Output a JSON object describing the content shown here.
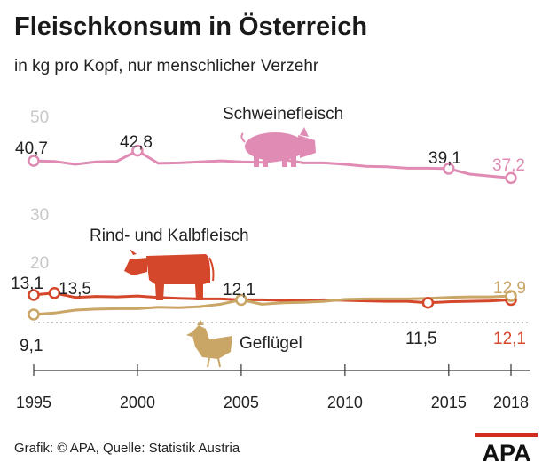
{
  "header": {
    "title": "Fleischkonsum in Österreich",
    "subtitle": "in kg pro Kopf, nur menschlicher Verzehr"
  },
  "footer": {
    "source": "Grafik: © APA, Quelle: Statistik Austria",
    "logo_text": "APA"
  },
  "colors": {
    "pork": "#e08bb3",
    "beef": "#d4472a",
    "poultry": "#c9a566",
    "grid": "#8a8a8a",
    "tick": "#c8c8c8",
    "text": "#222222"
  },
  "chart_data": {
    "type": "line",
    "title": "Fleischkonsum in Österreich",
    "subtitle": "in kg pro Kopf, nur menschlicher Verzehr",
    "xlabel": "",
    "ylabel": "kg pro Kopf",
    "x": [
      1995,
      1996,
      1997,
      1998,
      1999,
      2000,
      2001,
      2002,
      2003,
      2004,
      2005,
      2006,
      2007,
      2008,
      2009,
      2010,
      2011,
      2012,
      2013,
      2014,
      2015,
      2016,
      2017,
      2018
    ],
    "x_ticks": [
      "1995",
      "2000",
      "2005",
      "2010",
      "2015",
      "2018"
    ],
    "y_ticks": [
      "50",
      "30",
      "20"
    ],
    "axis_break": "between 20 and 30",
    "ylim": [
      0,
      50
    ],
    "series": [
      {
        "name": "Schweinefleisch",
        "color": "#e08bb3",
        "values": [
          40.7,
          40.6,
          40.0,
          40.5,
          40.6,
          42.8,
          40.2,
          40.3,
          40.5,
          40.7,
          40.5,
          40.4,
          41.0,
          40.3,
          40.3,
          40.0,
          39.6,
          39.5,
          39.2,
          39.2,
          39.1,
          38.0,
          37.6,
          37.2
        ],
        "point_labels": [
          {
            "year": 1995,
            "text": "40,7"
          },
          {
            "year": 2000,
            "text": "42,8"
          },
          {
            "year": 2015,
            "text": "39,1"
          },
          {
            "year": 2018,
            "text": "37,2"
          }
        ]
      },
      {
        "name": "Rind- und Kalbfleisch",
        "color": "#d4472a",
        "values": [
          13.1,
          13.5,
          12.6,
          12.8,
          12.7,
          12.9,
          12.6,
          12.4,
          12.3,
          12.3,
          12.1,
          12.1,
          12.0,
          12.0,
          12.1,
          12.0,
          11.9,
          11.8,
          11.8,
          11.5,
          11.7,
          11.8,
          11.9,
          12.1
        ],
        "point_labels": [
          {
            "year": 1995,
            "text": "13,1"
          },
          {
            "year": 1996,
            "text": "13,5"
          },
          {
            "year": 2014,
            "text": "11,5"
          },
          {
            "year": 2018,
            "text": "12,1"
          }
        ]
      },
      {
        "name": "Geflügel",
        "color": "#c9a566",
        "values": [
          9.1,
          9.4,
          10.0,
          10.2,
          10.3,
          10.3,
          10.6,
          10.5,
          10.7,
          11.2,
          12.1,
          11.2,
          11.5,
          11.6,
          11.8,
          12.2,
          12.3,
          12.3,
          12.3,
          12.4,
          12.6,
          12.7,
          12.7,
          12.9
        ],
        "point_labels": [
          {
            "year": 1995,
            "text": "9,1"
          },
          {
            "year": 2005,
            "text": "12,1"
          },
          {
            "year": 2018,
            "text": "12,9"
          }
        ]
      }
    ],
    "annotations": [
      "Schweinefleisch",
      "Rind- und Kalbfleisch",
      "Geflügel"
    ],
    "icons": [
      "pig-icon",
      "cow-icon",
      "chicken-icon"
    ],
    "grid": false,
    "legend": "inline labels"
  }
}
